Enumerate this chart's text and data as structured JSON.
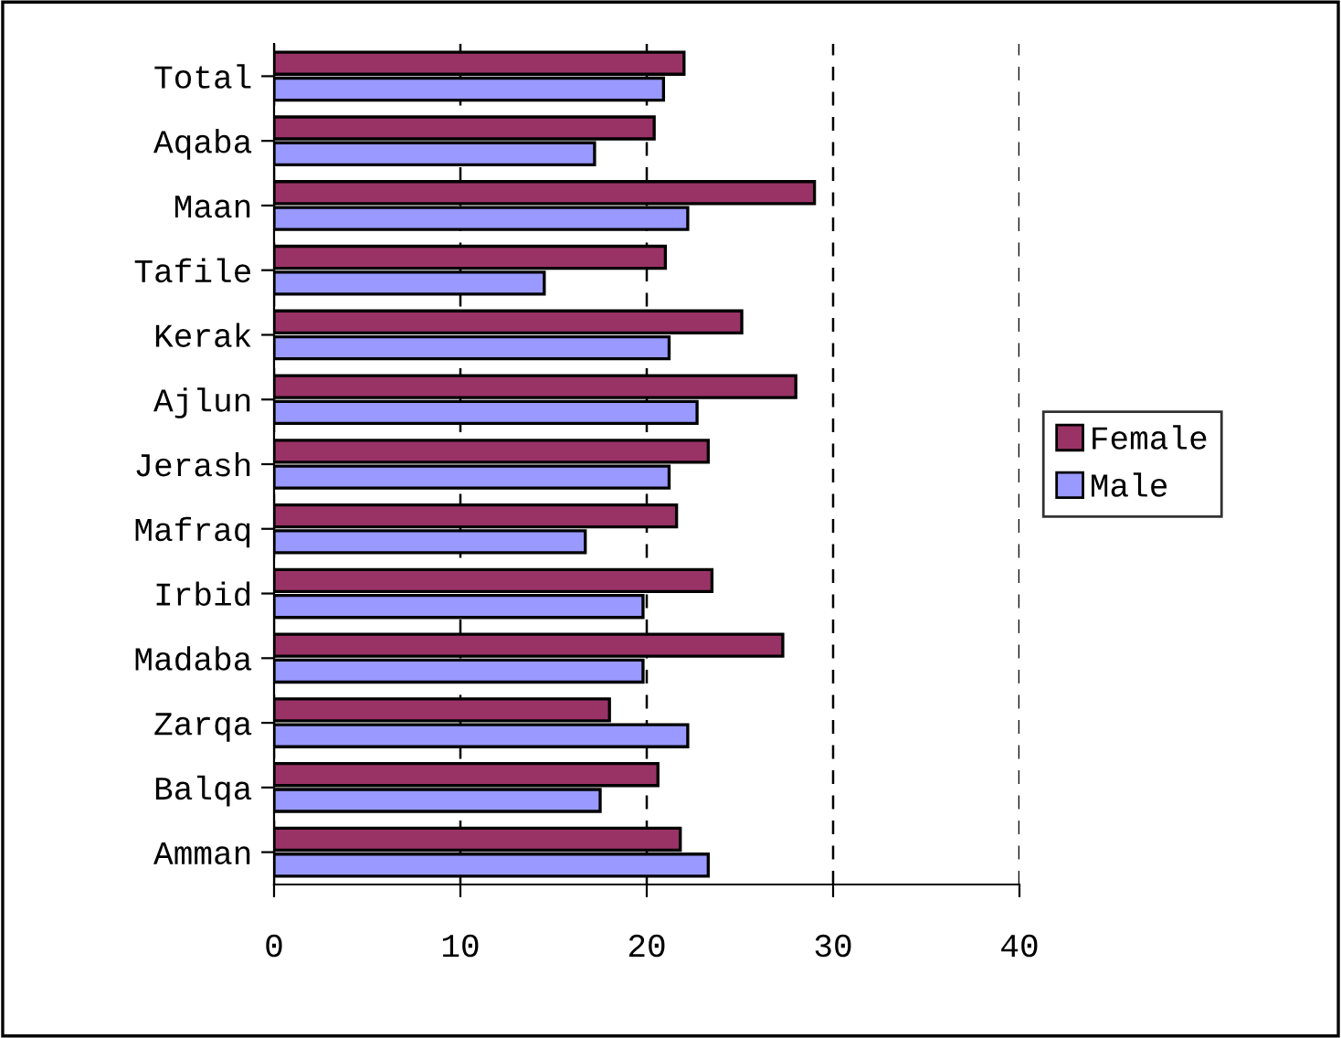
{
  "chart_data": {
    "type": "bar",
    "orientation": "horizontal",
    "categories": [
      "Total",
      "Aqaba",
      "Maan",
      "Tafile",
      "Kerak",
      "Ajlun",
      "Jerash",
      "Mafraq",
      "Irbid",
      "Madaba",
      "Zarqa",
      "Balqa",
      "Amman"
    ],
    "series": [
      {
        "name": "Female",
        "color": "#993366",
        "values": [
          22.0,
          20.4,
          29.0,
          21.0,
          25.1,
          28.0,
          23.3,
          21.6,
          23.5,
          27.3,
          18.0,
          20.6,
          21.8
        ]
      },
      {
        "name": "Male",
        "color": "#9999ff",
        "values": [
          20.9,
          17.2,
          22.2,
          14.5,
          21.2,
          22.7,
          21.2,
          16.7,
          19.8,
          19.8,
          22.2,
          17.5,
          23.3
        ]
      }
    ],
    "xlim": [
      0,
      40
    ],
    "xticks": [
      0,
      10,
      20,
      30,
      40
    ],
    "grid": "x",
    "legend": "right"
  }
}
